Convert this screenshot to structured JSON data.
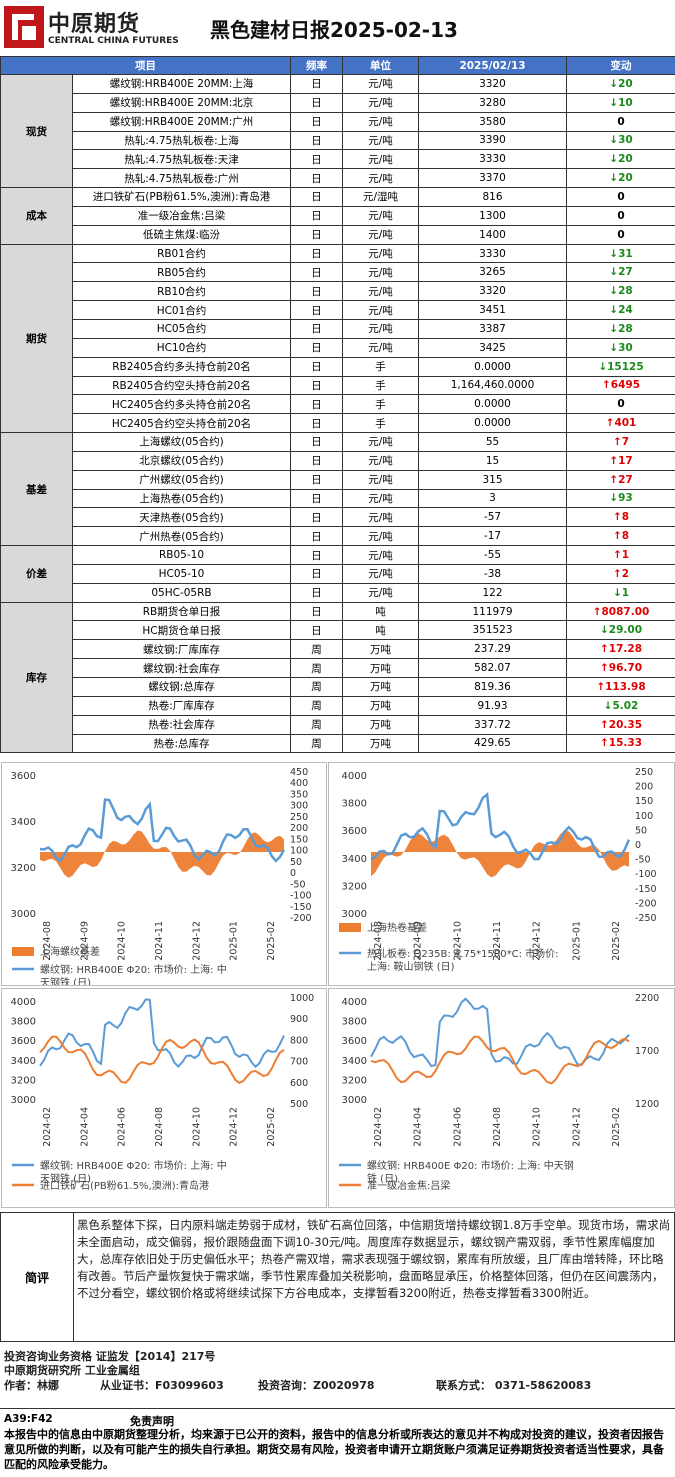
{
  "header": {
    "logo_cn": "中原期货",
    "logo_en": "CENTRAL CHINA FUTURES",
    "title": "黑色建材日报2025-02-13"
  },
  "table": {
    "columns": [
      "项目",
      "频率",
      "单位",
      "2025/02/13",
      "变动"
    ],
    "groups": [
      {
        "cat": "现货",
        "rows": [
          [
            "螺纹钢:HRB400E 20MM:上海",
            "日",
            "元/吨",
            "3320",
            "dn",
            "20"
          ],
          [
            "螺纹钢:HRB400E 20MM:北京",
            "日",
            "元/吨",
            "3280",
            "dn",
            "10"
          ],
          [
            "螺纹钢:HRB400E 20MM:广州",
            "日",
            "元/吨",
            "3580",
            "",
            "0"
          ],
          [
            "热轧:4.75热轧板卷:上海",
            "日",
            "元/吨",
            "3390",
            "dn",
            "30"
          ],
          [
            "热轧:4.75热轧板卷:天津",
            "日",
            "元/吨",
            "3330",
            "dn",
            "20"
          ],
          [
            "热轧:4.75热轧板卷:广州",
            "日",
            "元/吨",
            "3370",
            "dn",
            "20"
          ]
        ]
      },
      {
        "cat": "成本",
        "rows": [
          [
            "进口铁矿石(PB粉61.5%,澳洲):青岛港",
            "日",
            "元/湿吨",
            "816",
            "",
            "0"
          ],
          [
            "准一级冶金焦:吕梁",
            "日",
            "元/吨",
            "1300",
            "",
            "0"
          ],
          [
            "低硫主焦煤:临汾",
            "日",
            "元/吨",
            "1400",
            "",
            "0"
          ]
        ]
      },
      {
        "cat": "期货",
        "rows": [
          [
            "RB01合约",
            "日",
            "元/吨",
            "3330",
            "dn",
            "31"
          ],
          [
            "RB05合约",
            "日",
            "元/吨",
            "3265",
            "dn",
            "27"
          ],
          [
            "RB10合约",
            "日",
            "元/吨",
            "3320",
            "dn",
            "28"
          ],
          [
            "HC01合约",
            "日",
            "元/吨",
            "3451",
            "dn",
            "24"
          ],
          [
            "HC05合约",
            "日",
            "元/吨",
            "3387",
            "dn",
            "28"
          ],
          [
            "HC10合约",
            "日",
            "元/吨",
            "3425",
            "dn",
            "30"
          ],
          [
            "RB2405合约多头持仓前20名",
            "日",
            "手",
            "0.0000",
            "dn",
            "15125"
          ],
          [
            "RB2405合约空头持仓前20名",
            "日",
            "手",
            "1,164,460.0000",
            "up",
            "6495"
          ],
          [
            "HC2405合约多头持仓前20名",
            "日",
            "手",
            "0.0000",
            "",
            "0"
          ],
          [
            "HC2405合约空头持仓前20名",
            "日",
            "手",
            "0.0000",
            "up",
            "401"
          ]
        ]
      },
      {
        "cat": "基差",
        "rows": [
          [
            "上海螺纹(05合约)",
            "日",
            "元/吨",
            "55",
            "up",
            "7"
          ],
          [
            "北京螺纹(05合约)",
            "日",
            "元/吨",
            "15",
            "up",
            "17"
          ],
          [
            "广州螺纹(05合约)",
            "日",
            "元/吨",
            "315",
            "up",
            "27"
          ],
          [
            "上海热卷(05合约)",
            "日",
            "元/吨",
            "3",
            "dn",
            "93"
          ],
          [
            "天津热卷(05合约)",
            "日",
            "元/吨",
            "-57",
            "up",
            "8"
          ],
          [
            "广州热卷(05合约)",
            "日",
            "元/吨",
            "-17",
            "up",
            "8"
          ]
        ]
      },
      {
        "cat": "价差",
        "rows": [
          [
            "RB05-10",
            "日",
            "元/吨",
            "-55",
            "up",
            "1"
          ],
          [
            "HC05-10",
            "日",
            "元/吨",
            "-38",
            "up",
            "2"
          ],
          [
            "05HC-05RB",
            "日",
            "元/吨",
            "122",
            "dn",
            "1"
          ]
        ]
      },
      {
        "cat": "库存",
        "rows": [
          [
            "RB期货仓单日报",
            "日",
            "吨",
            "111979",
            "up",
            "8087.00"
          ],
          [
            "HC期货仓单日报",
            "日",
            "吨",
            "351523",
            "dn",
            "29.00"
          ],
          [
            "螺纹钢:厂库库存",
            "周",
            "万吨",
            "237.29",
            "up",
            "17.28"
          ],
          [
            "螺纹钢:社会库存",
            "周",
            "万吨",
            "582.07",
            "up",
            "96.70"
          ],
          [
            "螺纹钢:总库存",
            "周",
            "万吨",
            "819.36",
            "up",
            "113.98"
          ],
          [
            "热卷:厂库库存",
            "周",
            "万吨",
            "91.93",
            "dn",
            "5.02"
          ],
          [
            "热卷:社会库存",
            "周",
            "万吨",
            "337.72",
            "up",
            "20.35"
          ],
          [
            "热卷:总库存",
            "周",
            "万吨",
            "429.65",
            "up",
            "15.33"
          ]
        ]
      }
    ]
  },
  "chart_data": [
    {
      "type": "line",
      "left_ticks": [
        "3600",
        "3400",
        "3200",
        "3000"
      ],
      "right_ticks": [
        "450",
        "400",
        "350",
        "300",
        "250",
        "200",
        "150",
        "100",
        "50",
        "0",
        "-50",
        "-100",
        "-150",
        "-200"
      ],
      "x_ticks": [
        "2024-08",
        "2024-09",
        "2024-10",
        "2024-11",
        "2024-12",
        "2025-01",
        "2025-02"
      ],
      "series": [
        {
          "name": "上海螺纹基差",
          "color": "#ed7d31"
        },
        {
          "name": "螺纹钢: HRB400E Φ20: 市场价: 上海: 中天钢铁 (日)",
          "color": "#5b9bd5"
        }
      ]
    },
    {
      "type": "line",
      "left_ticks": [
        "4000",
        "3800",
        "3600",
        "3400",
        "3200",
        "3000"
      ],
      "right_ticks": [
        "250",
        "200",
        "150",
        "100",
        "50",
        "0",
        "-50",
        "-100",
        "-150",
        "-200",
        "-250"
      ],
      "x_ticks": [
        "2024-08",
        "2024-09",
        "2024-10",
        "2024-11",
        "2024-12",
        "2025-01",
        "2025-02"
      ],
      "series": [
        {
          "name": "上海热卷基差",
          "color": "#ed7d31"
        },
        {
          "name": "热轧板卷: Q235B: 4.75*1500*C: 市场价: 上海: 鞍山钢铁 (日)",
          "color": "#5b9bd5"
        }
      ]
    },
    {
      "type": "line",
      "left_ticks": [
        "4000",
        "3800",
        "3600",
        "3400",
        "3200",
        "3000"
      ],
      "right_ticks": [
        "1000",
        "900",
        "800",
        "700",
        "600",
        "500"
      ],
      "x_ticks": [
        "2024-02",
        "2024-04",
        "2024-06",
        "2024-08",
        "2024-10",
        "2024-12",
        "2025-02"
      ],
      "series": [
        {
          "name": "螺纹钢: HRB400E Φ20: 市场价: 上海: 中天钢铁 (日)",
          "color": "#5b9bd5"
        },
        {
          "name": "进口铁矿石(PB粉61.5%,澳洲):青岛港",
          "color": "#ed7d31"
        }
      ]
    },
    {
      "type": "line",
      "left_ticks": [
        "4000",
        "3800",
        "3600",
        "3400",
        "3200",
        "3000"
      ],
      "right_ticks": [
        "2200",
        "1700",
        "1200"
      ],
      "x_ticks": [
        "2024-02",
        "2024-04",
        "2024-06",
        "2024-08",
        "2024-10",
        "2024-12",
        "2025-02"
      ],
      "series": [
        {
          "name": "螺纹钢: HRB400E Φ20: 市场价: 上海: 中天钢铁 (日)",
          "color": "#5b9bd5"
        },
        {
          "name": "准一级冶金焦:吕梁",
          "color": "#ed7d31"
        }
      ]
    }
  ],
  "review": {
    "label": "简评",
    "text": "黑色系整体下探，日内原料端走势弱于成材，铁矿石高位回落，中信期货增持螺纹钢1.8万手空单。现货市场，需求尚未全面启动，成交偏弱，报价跟随盘面下调10-30元/吨。周度库存数据显示，螺纹钢产需双弱，季节性累库幅度加大，总库存依旧处于历史偏低水平；热卷产需双增，需求表现强于螺纹钢，累库有所放缓，且厂库由增转降，环比略有改善。节后产量恢复快于需求端，季节性累库叠加关税影响，盘面略显承压，价格整体回落，但仍在区间震荡内，不过分看空，螺纹钢价格或将继续试探下方谷电成本，支撑暂看3200附近，热卷支撑暂看3300附近。"
  },
  "footer": {
    "qual": "投资咨询业务资格    证监发【2014】217号",
    "inst": "中原期货研究所    工业金属组",
    "author": "作者：林娜",
    "cert": "从业证书：F03099603",
    "consult": "投资咨询：Z0020978",
    "contact": "联系方式：  0371-58620083"
  },
  "disclaimer": {
    "code": "A39:F42",
    "title": "免责声明",
    "text": "本报告中的信息由中原期货整理分析，均来源于已公开的资料，报告中的信息分析或所表达的意见并不构成对投资的建议，投资者因报告意见所做的判断，以及有可能产生的损失自行承担。期货交易有风险，投资者申请开立期货账户须满足证券期货投资者适当性要求，具备匹配的风险承受能力。"
  }
}
